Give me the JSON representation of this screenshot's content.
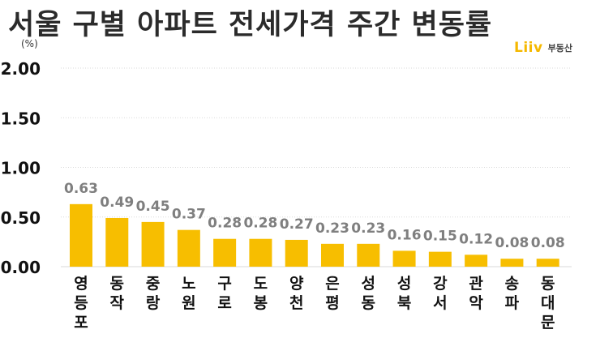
{
  "title": "서울 구별 아파트 전세가격 주간 변동률",
  "unit": "(%)",
  "logo": {
    "brand": "Liiv",
    "sub": "부동산"
  },
  "colors": {
    "bar": "#F7BE00",
    "grid": "#d9d9d9",
    "tick_text": "#111111",
    "value_text": "#7f7f7f"
  },
  "chart_data": {
    "type": "bar",
    "categories": [
      "영등포",
      "동작",
      "중랑",
      "노원",
      "구로",
      "도봉",
      "양천",
      "은평",
      "성동",
      "성북",
      "강서",
      "관악",
      "송파",
      "동대문"
    ],
    "values": [
      0.63,
      0.49,
      0.45,
      0.37,
      0.28,
      0.28,
      0.27,
      0.23,
      0.23,
      0.16,
      0.15,
      0.12,
      0.08,
      0.08
    ],
    "value_labels": [
      "0.63",
      "0.49",
      "0.45",
      "0.37",
      "0.28",
      "0.28",
      "0.27",
      "0.23",
      "0.23",
      "0.16",
      "0.15",
      "0.12",
      "0.08",
      "0.08"
    ],
    "ylim": [
      0,
      2.0
    ],
    "yticks": [
      "0.00",
      "0.50",
      "1.00",
      "1.50",
      "2.00"
    ],
    "ytick_values": [
      0,
      0.5,
      1.0,
      1.5,
      2.0
    ],
    "grid": true
  }
}
